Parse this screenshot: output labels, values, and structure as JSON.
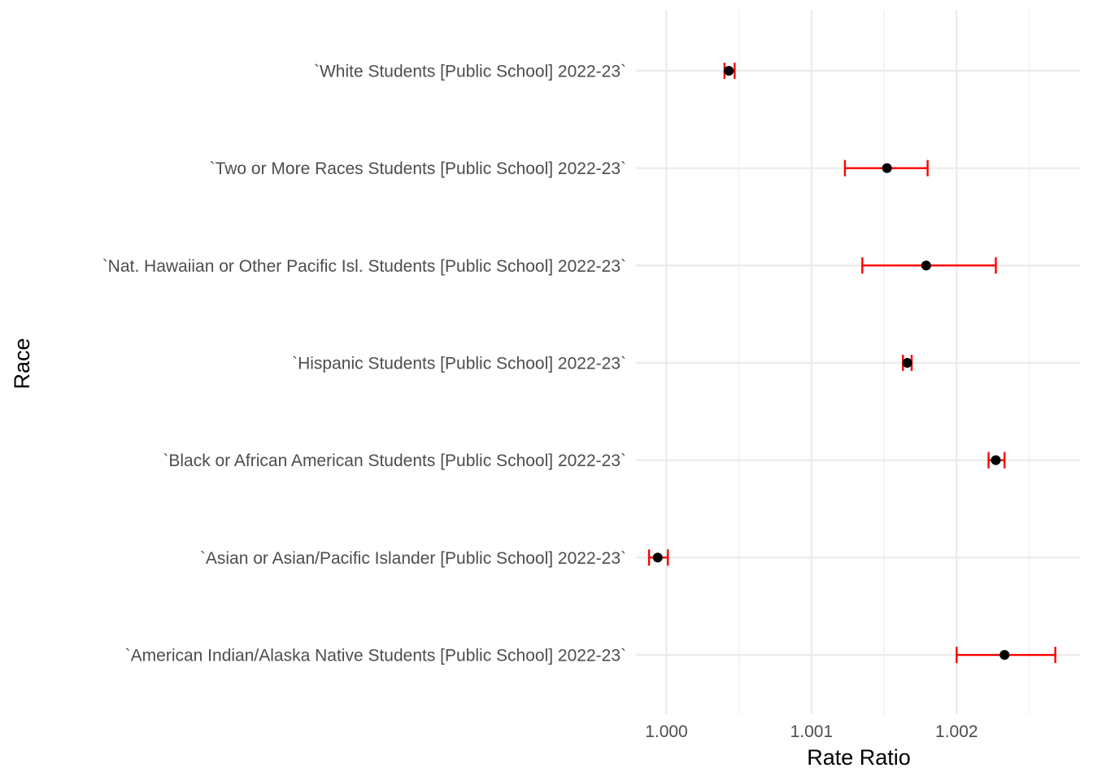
{
  "chart_data": {
    "type": "scatter",
    "title": "",
    "xlabel": "Rate Ratio",
    "ylabel": "Race",
    "xlim": [
      0.99979,
      1.00285
    ],
    "x_ticks": [
      1.0,
      1.001,
      1.002
    ],
    "x_tick_labels": [
      "1.000",
      "1.001",
      "1.002"
    ],
    "grid": true,
    "legend": "none",
    "colors": {
      "point": "#000000",
      "error_bar": "#ff0000",
      "grid": "#ebebeb",
      "tick_label": "#4d4d4d"
    },
    "categories": [
      "`White Students [Public School] 2022-23`",
      "`Two or More Races Students [Public School] 2022-23`",
      "`Nat. Hawaiian or Other Pacific Isl. Students [Public School] 2022-23`",
      "`Hispanic Students [Public School] 2022-23`",
      "`Black or African American Students [Public School] 2022-23`",
      "`Asian or Asian/Pacific Islander [Public School] 2022-23`",
      "`American Indian/Alaska Native Students [Public School] 2022-23`"
    ],
    "estimates": [
      1.00043,
      1.00152,
      1.00179,
      1.00166,
      1.00227,
      0.99994,
      1.00233
    ],
    "ci_low": [
      1.0004,
      1.00123,
      1.00135,
      1.00163,
      1.00222,
      0.99988,
      1.002
    ],
    "ci_high": [
      1.00047,
      1.0018,
      1.00227,
      1.00169,
      1.00233,
      1.00001,
      1.00268
    ]
  }
}
